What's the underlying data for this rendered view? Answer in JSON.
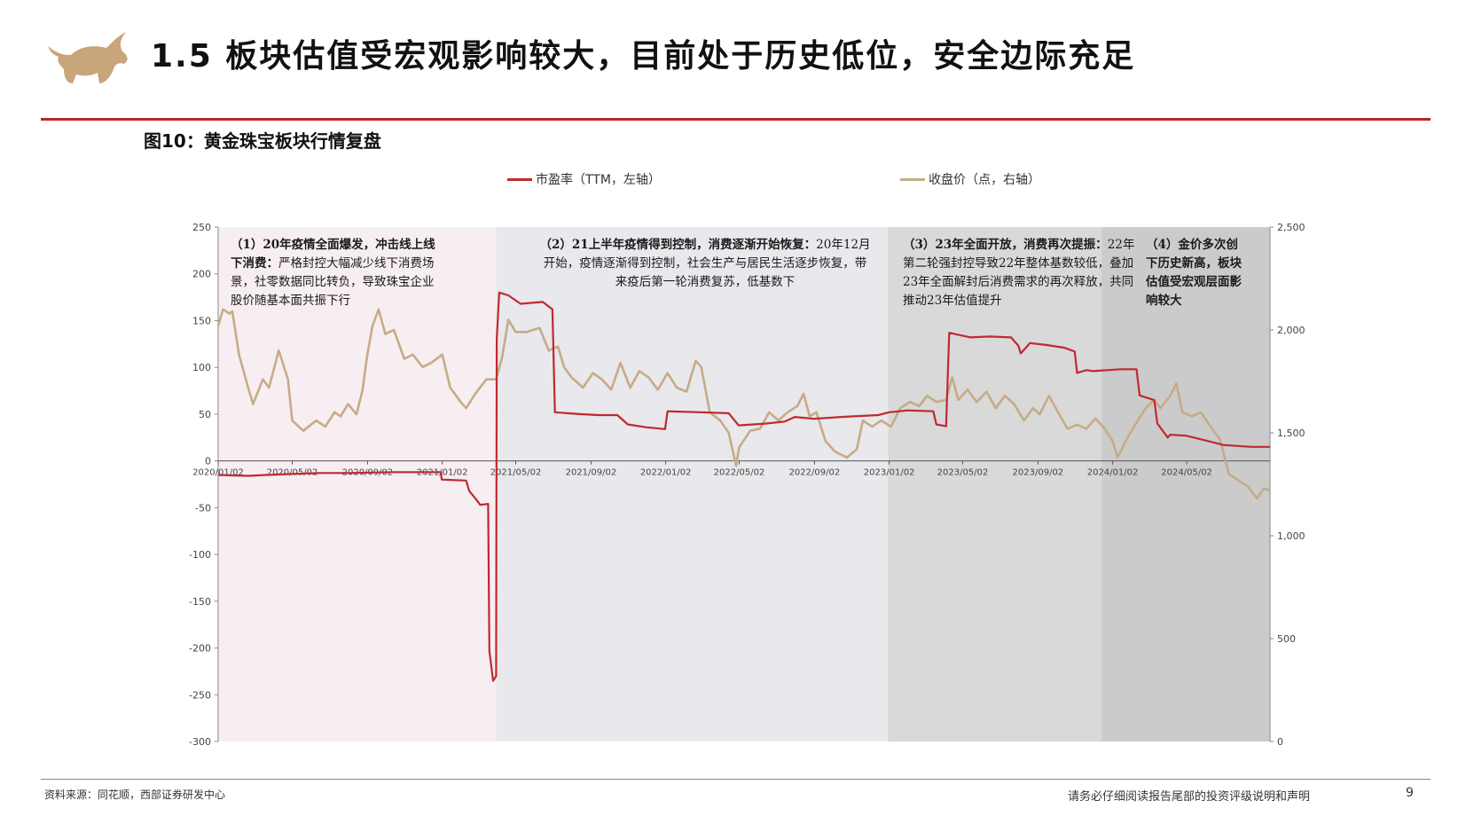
{
  "page": {
    "title": "1.5 板块估值受宏观影响较大，目前处于历史低位，安全边际充足",
    "figure_caption": "图10：黄金珠宝板块行情复盘",
    "source": "资料来源：同花顺，西部证券研发中心",
    "disclaimer": "请务必仔细阅读报告尾部的投资评级说明和声明",
    "page_number": "9"
  },
  "colors": {
    "pe": "#c0292f",
    "close": "#c6ab88",
    "accent": "#b7262b",
    "logo": "#c9a57a"
  },
  "annotations": [
    {
      "head": "（1）20年疫情全面爆发，冲击线上线下消费：",
      "body": "严格封控大幅减少线下消费场景，社零数据同比转负，导致珠宝企业股价随基本面共振下行"
    },
    {
      "head": "（2）21上半年疫情得到控制，消费逐渐开始恢复：",
      "body": "20年12月开始，疫情逐渐得到控制，社会生产与居民生活逐步恢复，带来疫后第一轮消费复苏，低基数下"
    },
    {
      "head": "（3）23年全面开放，消费再次提振：",
      "body": "22年第二轮强封控导致22年整体基数较低，叠加23年全面解封后消费需求的再次释放，共同推动23年估值提升"
    },
    {
      "head": "（4）金价多次创下历史新高，板块估值受宏观层面影响较大",
      "body": ""
    }
  ],
  "chart_data": {
    "type": "line",
    "title": "图10：黄金珠宝板块行情复盘",
    "x_ticks": [
      "2020/01/02",
      "2020/05/02",
      "2020/09/02",
      "2021/01/02",
      "2021/05/02",
      "2021/09/02",
      "2022/01/02",
      "2022/05/02",
      "2022/09/02",
      "2023/01/02",
      "2023/05/02",
      "2023/09/02",
      "2024/01/02",
      "2024/05/02"
    ],
    "x_range": [
      "2020/01/02",
      "2024/09/15"
    ],
    "left_axis": {
      "label": "市盈率（TTM，左轴）",
      "min": -300,
      "max": 250,
      "ticks": [
        250,
        200,
        150,
        100,
        50,
        0,
        -50,
        -100,
        -150,
        -200,
        -250,
        -300
      ]
    },
    "right_axis": {
      "label": "收盘价（点，右轴）",
      "min": 0,
      "max": 2500,
      "ticks": [
        "2,500",
        "2,000",
        "1,500",
        "1,000",
        "500",
        "0"
      ]
    },
    "periods": [
      {
        "start": "2020/01/02",
        "end": "2021/03/31",
        "shade": "#f7eef2"
      },
      {
        "start": "2021/03/31",
        "end": "2022/12/31",
        "shade": "#e9e8ec"
      },
      {
        "start": "2022/12/31",
        "end": "2023/12/15",
        "shade": "#d9d9d9"
      },
      {
        "start": "2023/12/15",
        "end": "2024/09/15",
        "shade": "#cbcbcb"
      }
    ],
    "series": [
      {
        "name": "市盈率（TTM，左轴）",
        "axis": "left",
        "points": [
          [
            "2020/01/02",
            -15
          ],
          [
            "2020/02/20",
            -16
          ],
          [
            "2020/03/20",
            -15
          ],
          [
            "2020/05/01",
            -14
          ],
          [
            "2020/06/15",
            -13
          ],
          [
            "2020/08/01",
            -13
          ],
          [
            "2020/10/15",
            -12
          ],
          [
            "2020/12/31",
            -12
          ],
          [
            "2021/01/01",
            -20
          ],
          [
            "2021/02/10",
            -21
          ],
          [
            "2021/02/15",
            -32
          ],
          [
            "2021/02/25",
            -40
          ],
          [
            "2021/03/05",
            -47
          ],
          [
            "2021/03/18",
            -46
          ],
          [
            "2021/03/20",
            -203
          ],
          [
            "2021/03/26",
            -235
          ],
          [
            "2021/03/31",
            -230
          ],
          [
            "2021/04/01",
            130
          ],
          [
            "2021/04/05",
            180
          ],
          [
            "2021/04/20",
            177
          ],
          [
            "2021/05/10",
            168
          ],
          [
            "2021/06/15",
            170
          ],
          [
            "2021/07/01",
            162
          ],
          [
            "2021/07/05",
            52
          ],
          [
            "2021/08/15",
            50
          ],
          [
            "2021/09/15",
            49
          ],
          [
            "2021/10/15",
            49
          ],
          [
            "2021/11/01",
            39
          ],
          [
            "2021/12/01",
            36
          ],
          [
            "2022/01/01",
            34
          ],
          [
            "2022/01/05",
            53
          ],
          [
            "2022/03/01",
            52
          ],
          [
            "2022/04/15",
            51
          ],
          [
            "2022/05/01",
            38
          ],
          [
            "2022/06/15",
            40
          ],
          [
            "2022/07/15",
            42
          ],
          [
            "2022/08/01",
            47
          ],
          [
            "2022/09/01",
            45
          ],
          [
            "2022/10/15",
            47
          ],
          [
            "2022/11/15",
            48
          ],
          [
            "2022/12/15",
            49
          ],
          [
            "2023/01/02",
            52
          ],
          [
            "2023/02/01",
            54
          ],
          [
            "2023/03/15",
            53
          ],
          [
            "2023/03/20",
            39
          ],
          [
            "2023/04/05",
            37
          ],
          [
            "2023/04/10",
            137
          ],
          [
            "2023/05/15",
            132
          ],
          [
            "2023/06/15",
            133
          ],
          [
            "2023/07/20",
            132
          ],
          [
            "2023/08/01",
            123
          ],
          [
            "2023/08/05",
            115
          ],
          [
            "2023/08/20",
            126
          ],
          [
            "2023/09/15",
            124
          ],
          [
            "2023/10/15",
            121
          ],
          [
            "2023/11/01",
            117
          ],
          [
            "2023/11/05",
            94
          ],
          [
            "2023/11/20",
            97
          ],
          [
            "2023/12/01",
            96
          ],
          [
            "2024/01/15",
            98
          ],
          [
            "2024/02/10",
            98
          ],
          [
            "2024/02/15",
            70
          ],
          [
            "2024/03/10",
            65
          ],
          [
            "2024/03/15",
            40
          ],
          [
            "2024/04/01",
            25
          ],
          [
            "2024/04/05",
            28
          ],
          [
            "2024/05/01",
            27
          ],
          [
            "2024/06/01",
            22
          ],
          [
            "2024/07/01",
            17
          ],
          [
            "2024/08/15",
            15
          ],
          [
            "2024/09/15",
            15
          ]
        ]
      },
      {
        "name": "收盘价（点，右轴）",
        "axis": "right",
        "points": [
          [
            "2020/01/02",
            2020
          ],
          [
            "2020/01/10",
            2100
          ],
          [
            "2020/01/20",
            2080
          ],
          [
            "2020/01/25",
            2090
          ],
          [
            "2020/02/05",
            1880
          ],
          [
            "2020/02/20",
            1720
          ],
          [
            "2020/02/28",
            1640
          ],
          [
            "2020/03/15",
            1760
          ],
          [
            "2020/03/25",
            1720
          ],
          [
            "2020/04/10",
            1900
          ],
          [
            "2020/04/25",
            1760
          ],
          [
            "2020/05/02",
            1560
          ],
          [
            "2020/05/20",
            1510
          ],
          [
            "2020/06/10",
            1560
          ],
          [
            "2020/06/25",
            1530
          ],
          [
            "2020/07/10",
            1600
          ],
          [
            "2020/07/20",
            1580
          ],
          [
            "2020/08/01",
            1640
          ],
          [
            "2020/08/15",
            1590
          ],
          [
            "2020/08/25",
            1710
          ],
          [
            "2020/09/01",
            1870
          ],
          [
            "2020/09/10",
            2020
          ],
          [
            "2020/09/20",
            2100
          ],
          [
            "2020/10/01",
            1980
          ],
          [
            "2020/10/15",
            2000
          ],
          [
            "2020/11/01",
            1860
          ],
          [
            "2020/11/15",
            1880
          ],
          [
            "2020/12/01",
            1820
          ],
          [
            "2020/12/15",
            1840
          ],
          [
            "2021/01/02",
            1880
          ],
          [
            "2021/01/15",
            1720
          ],
          [
            "2021/02/01",
            1650
          ],
          [
            "2021/02/10",
            1620
          ],
          [
            "2021/02/25",
            1690
          ],
          [
            "2021/03/15",
            1760
          ],
          [
            "2021/03/31",
            1760
          ],
          [
            "2021/04/10",
            1870
          ],
          [
            "2021/04/20",
            2050
          ],
          [
            "2021/05/02",
            1990
          ],
          [
            "2021/05/20",
            1990
          ],
          [
            "2021/06/10",
            2010
          ],
          [
            "2021/06/25",
            1900
          ],
          [
            "2021/07/10",
            1920
          ],
          [
            "2021/07/20",
            1820
          ],
          [
            "2021/08/01",
            1770
          ],
          [
            "2021/08/20",
            1720
          ],
          [
            "2021/09/05",
            1790
          ],
          [
            "2021/09/20",
            1760
          ],
          [
            "2021/10/05",
            1710
          ],
          [
            "2021/10/20",
            1840
          ],
          [
            "2021/11/05",
            1720
          ],
          [
            "2021/11/20",
            1800
          ],
          [
            "2021/12/05",
            1770
          ],
          [
            "2021/12/20",
            1710
          ],
          [
            "2022/01/05",
            1790
          ],
          [
            "2022/01/20",
            1720
          ],
          [
            "2022/02/05",
            1700
          ],
          [
            "2022/02/20",
            1850
          ],
          [
            "2022/03/01",
            1820
          ],
          [
            "2022/03/15",
            1600
          ],
          [
            "2022/04/01",
            1560
          ],
          [
            "2022/04/15",
            1500
          ],
          [
            "2022/04/27",
            1340
          ],
          [
            "2022/05/02",
            1430
          ],
          [
            "2022/05/20",
            1510
          ],
          [
            "2022/06/05",
            1520
          ],
          [
            "2022/06/20",
            1600
          ],
          [
            "2022/07/05",
            1560
          ],
          [
            "2022/07/20",
            1600
          ],
          [
            "2022/08/05",
            1630
          ],
          [
            "2022/08/15",
            1690
          ],
          [
            "2022/08/25",
            1580
          ],
          [
            "2022/09/05",
            1600
          ],
          [
            "2022/09/20",
            1460
          ],
          [
            "2022/10/05",
            1410
          ],
          [
            "2022/10/25",
            1380
          ],
          [
            "2022/11/10",
            1420
          ],
          [
            "2022/11/20",
            1560
          ],
          [
            "2022/12/05",
            1530
          ],
          [
            "2022/12/20",
            1560
          ],
          [
            "2023/01/05",
            1530
          ],
          [
            "2023/01/20",
            1620
          ],
          [
            "2023/02/05",
            1650
          ],
          [
            "2023/02/20",
            1630
          ],
          [
            "2023/03/05",
            1680
          ],
          [
            "2023/03/20",
            1650
          ],
          [
            "2023/04/05",
            1660
          ],
          [
            "2023/04/15",
            1770
          ],
          [
            "2023/04/25",
            1660
          ],
          [
            "2023/05/10",
            1710
          ],
          [
            "2023/05/25",
            1650
          ],
          [
            "2023/06/10",
            1700
          ],
          [
            "2023/06/25",
            1620
          ],
          [
            "2023/07/10",
            1680
          ],
          [
            "2023/07/25",
            1640
          ],
          [
            "2023/08/10",
            1560
          ],
          [
            "2023/08/25",
            1620
          ],
          [
            "2023/09/05",
            1590
          ],
          [
            "2023/09/20",
            1680
          ],
          [
            "2023/10/05",
            1600
          ],
          [
            "2023/10/20",
            1520
          ],
          [
            "2023/11/05",
            1540
          ],
          [
            "2023/11/20",
            1520
          ],
          [
            "2023/12/05",
            1570
          ],
          [
            "2023/12/20",
            1520
          ],
          [
            "2024/01/02",
            1460
          ],
          [
            "2024/01/10",
            1380
          ],
          [
            "2024/01/25",
            1470
          ],
          [
            "2024/02/10",
            1550
          ],
          [
            "2024/02/25",
            1620
          ],
          [
            "2024/03/10",
            1660
          ],
          [
            "2024/03/20",
            1620
          ],
          [
            "2024/04/05",
            1680
          ],
          [
            "2024/04/15",
            1740
          ],
          [
            "2024/04/25",
            1600
          ],
          [
            "2024/05/10",
            1580
          ],
          [
            "2024/05/25",
            1600
          ],
          [
            "2024/06/10",
            1530
          ],
          [
            "2024/06/25",
            1470
          ],
          [
            "2024/07/10",
            1300
          ],
          [
            "2024/07/25",
            1270
          ],
          [
            "2024/08/10",
            1240
          ],
          [
            "2024/08/25",
            1180
          ],
          [
            "2024/09/05",
            1230
          ],
          [
            "2024/09/15",
            1220
          ]
        ]
      }
    ],
    "legend": "top"
  }
}
